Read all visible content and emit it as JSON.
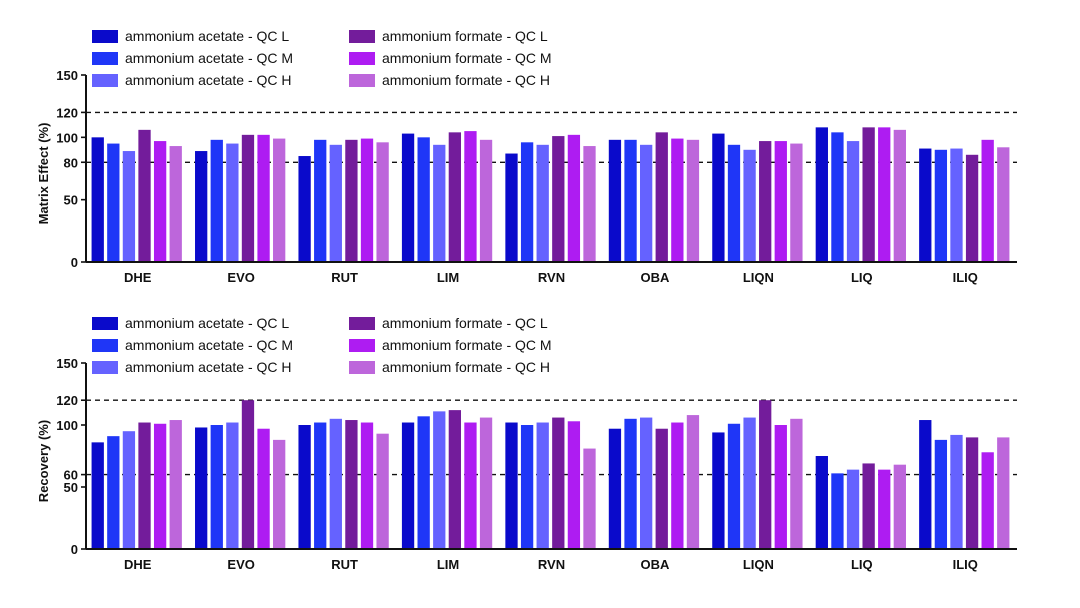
{
  "colors": {
    "aa_qcl": "#0a0acb",
    "aa_qcm": "#1f36f7",
    "aa_qch": "#6562ff",
    "af_qcl": "#731c9b",
    "af_qcm": "#ae1cf2",
    "af_qch": "#bd66db",
    "axis": "#111111"
  },
  "chart_data": [
    {
      "type": "bar",
      "ylabel": "Matrix Effect (%)",
      "ylim": [
        0,
        150
      ],
      "yticks": [
        0,
        50,
        80,
        100,
        120,
        150
      ],
      "reference_lines": [
        80,
        120
      ],
      "legend_position": "top-left",
      "categories": [
        "DHE",
        "EVO",
        "RUT",
        "LIM",
        "RVN",
        "OBA",
        "LIQN",
        "LIQ",
        "ILIQ"
      ],
      "series": [
        {
          "name": "ammonium acetate - QC L",
          "color_key": "aa_qcl",
          "values": [
            100,
            89,
            85,
            103,
            87,
            98,
            103,
            108,
            91
          ]
        },
        {
          "name": "ammonium acetate - QC M",
          "color_key": "aa_qcm",
          "values": [
            95,
            98,
            98,
            100,
            96,
            98,
            94,
            104,
            90
          ]
        },
        {
          "name": "ammonium acetate - QC H",
          "color_key": "aa_qch",
          "values": [
            89,
            95,
            94,
            94,
            94,
            94,
            90,
            97,
            91
          ]
        },
        {
          "name": "ammonium formate - QC L",
          "color_key": "af_qcl",
          "values": [
            106,
            102,
            98,
            104,
            101,
            104,
            97,
            108,
            86
          ]
        },
        {
          "name": "ammonium formate - QC M",
          "color_key": "af_qcm",
          "values": [
            97,
            102,
            99,
            105,
            102,
            99,
            97,
            108,
            98
          ]
        },
        {
          "name": "ammonium formate - QC H",
          "color_key": "af_qch",
          "values": [
            93,
            99,
            96,
            98,
            93,
            98,
            95,
            106,
            92
          ]
        }
      ]
    },
    {
      "type": "bar",
      "ylabel": "Recovery (%)",
      "ylim": [
        0,
        150
      ],
      "yticks": [
        0,
        50,
        60,
        100,
        120,
        150
      ],
      "reference_lines": [
        60,
        120
      ],
      "legend_position": "top-left",
      "categories": [
        "DHE",
        "EVO",
        "RUT",
        "LIM",
        "RVN",
        "OBA",
        "LIQN",
        "LIQ",
        "ILIQ"
      ],
      "series": [
        {
          "name": "ammonium acetate - QC L",
          "color_key": "aa_qcl",
          "values": [
            86,
            98,
            100,
            102,
            102,
            97,
            94,
            75,
            104
          ]
        },
        {
          "name": "ammonium acetate - QC M",
          "color_key": "aa_qcm",
          "values": [
            91,
            100,
            102,
            107,
            100,
            105,
            101,
            61,
            88
          ]
        },
        {
          "name": "ammonium acetate - QC H",
          "color_key": "aa_qch",
          "values": [
            95,
            102,
            105,
            111,
            102,
            106,
            106,
            64,
            92
          ]
        },
        {
          "name": "ammonium formate - QC L",
          "color_key": "af_qcl",
          "values": [
            102,
            120,
            104,
            112,
            106,
            97,
            120,
            69,
            90
          ]
        },
        {
          "name": "ammonium formate - QC M",
          "color_key": "af_qcm",
          "values": [
            101,
            97,
            102,
            102,
            103,
            102,
            100,
            64,
            78
          ]
        },
        {
          "name": "ammonium formate - QC H",
          "color_key": "af_qch",
          "values": [
            104,
            88,
            93,
            106,
            81,
            108,
            105,
            68,
            90
          ]
        }
      ]
    }
  ]
}
